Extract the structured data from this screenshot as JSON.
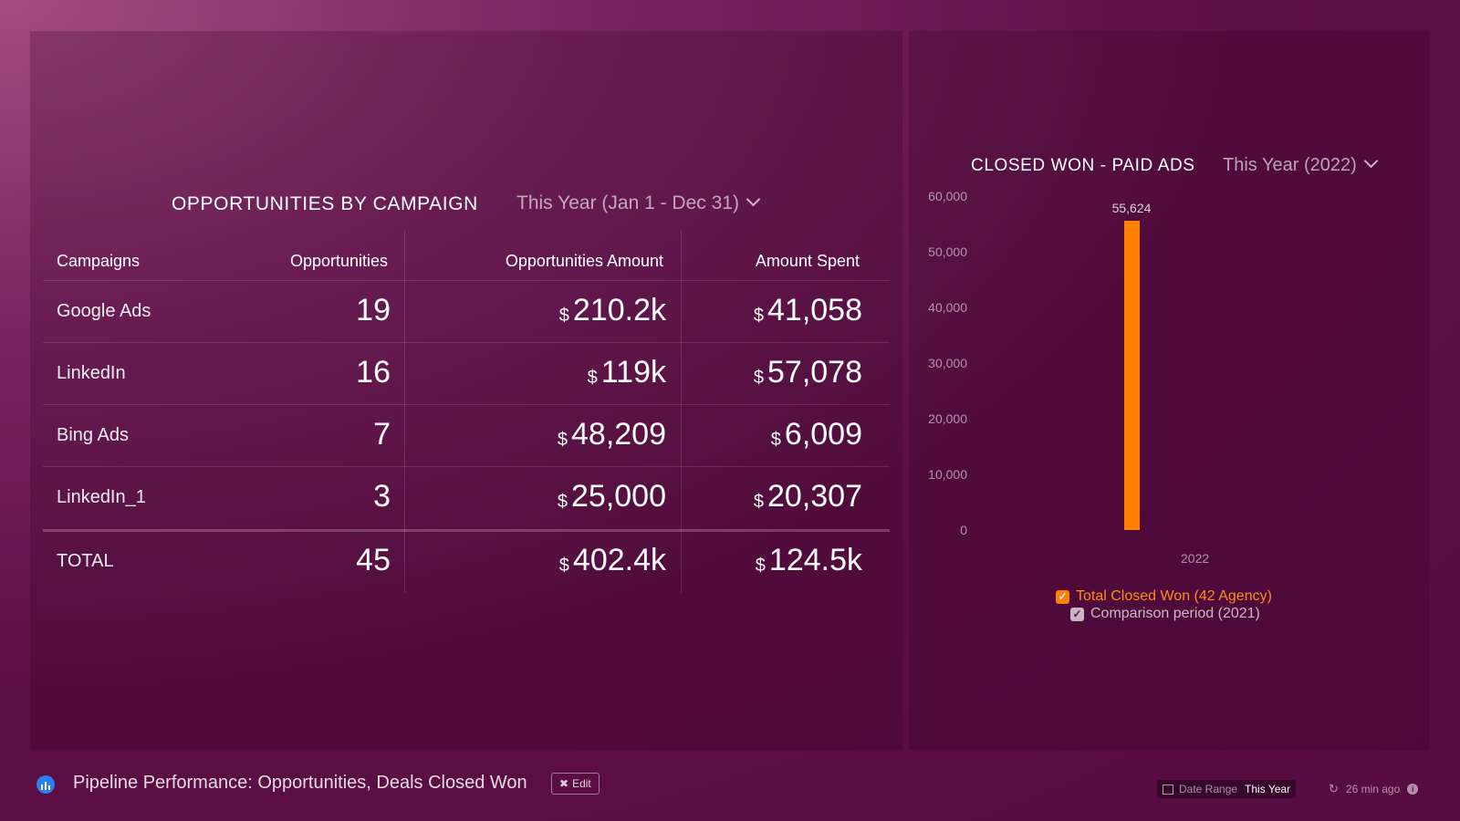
{
  "table_widget": {
    "title": "OPPORTUNITIES BY CAMPAIGN",
    "date_range": "This Year (Jan 1 - Dec 31)",
    "columns": [
      "Campaigns",
      "Opportunities",
      "Opportunities Amount",
      "Amount Spent"
    ],
    "currency_symbol": "$",
    "rows": [
      {
        "campaign": "Google Ads",
        "opportunities": "19",
        "amount": "210.2k",
        "spent": "41,058"
      },
      {
        "campaign": "LinkedIn",
        "opportunities": "16",
        "amount": "119k",
        "spent": "57,078"
      },
      {
        "campaign": "Bing Ads",
        "opportunities": "7",
        "amount": "48,209",
        "spent": "6,009"
      },
      {
        "campaign": "LinkedIn_1",
        "opportunities": "3",
        "amount": "25,000",
        "spent": "20,307"
      }
    ],
    "total": {
      "label": "TOTAL",
      "opportunities": "45",
      "amount": "402.4k",
      "spent": "124.5k"
    }
  },
  "chart_widget": {
    "title": "CLOSED WON - PAID ADS",
    "date_range": "This Year (2022)"
  },
  "chart_data": {
    "type": "bar",
    "categories": [
      "2022"
    ],
    "series": [
      {
        "name": "Total Closed Won (42 Agency)",
        "values": [
          55624
        ],
        "color": "#ff7f00"
      }
    ],
    "data_labels": [
      "55,624"
    ],
    "ylim": [
      0,
      60000
    ],
    "yticks": [
      "60,000",
      "50,000",
      "40,000",
      "30,000",
      "20,000",
      "10,000",
      "0"
    ],
    "legend": [
      {
        "label": "Total Closed Won (42 Agency)",
        "color": "#ff7f00",
        "checked": true
      },
      {
        "label": "Comparison period (2021)",
        "color": "#c9b5c4",
        "checked": true
      }
    ],
    "legend_position": "bottom",
    "grid": false
  },
  "footer": {
    "dashboard_title": "Pipeline Performance: Opportunities, Deals Closed Won",
    "edit_label": "Edit",
    "date_range_label": "Date Range",
    "date_range_value": "This Year",
    "updated": "26 min ago"
  }
}
